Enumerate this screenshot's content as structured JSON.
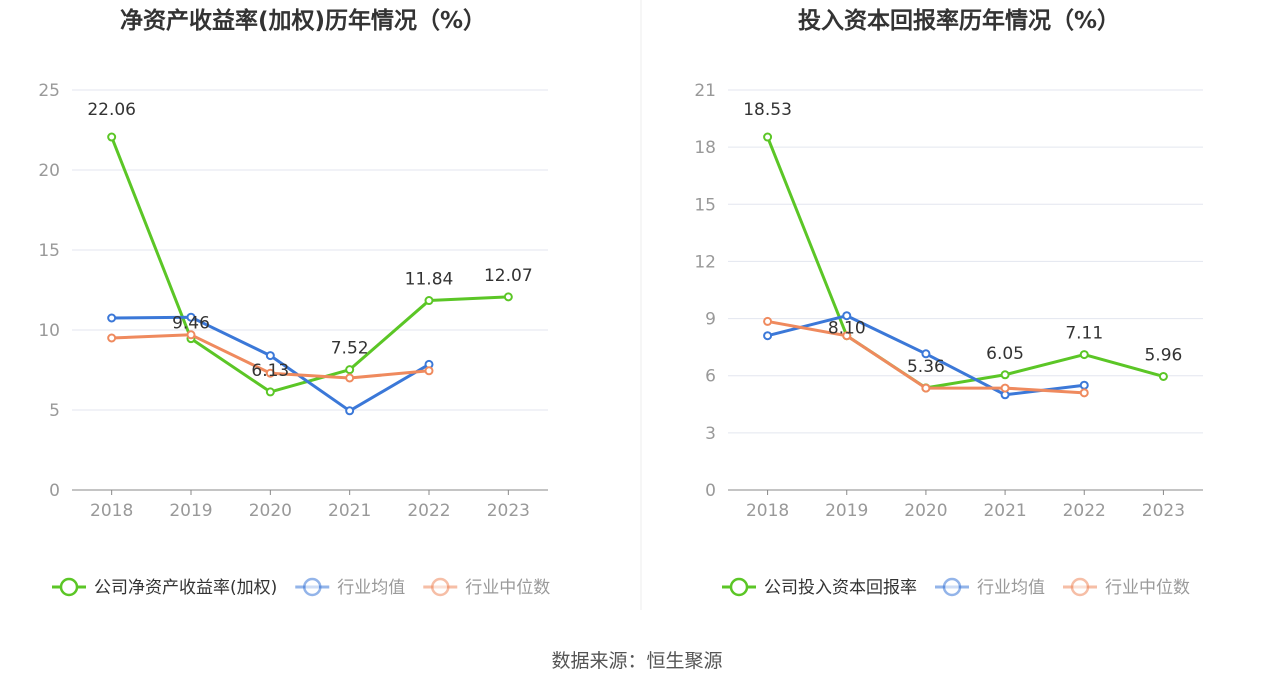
{
  "source_text": "数据来源：恒生聚源",
  "colors": {
    "company": "#5bc626",
    "industry_avg": "#3b78d8",
    "industry_median": "#ef8a5e",
    "grid": "#e3e6ef",
    "axis": "#888888"
  },
  "legend": {
    "industry_avg": "行业均值",
    "industry_median": "行业中位数"
  },
  "chart_data": [
    {
      "type": "line",
      "title": "净资产收益率(加权)历年情况（%）",
      "categories": [
        "2018",
        "2019",
        "2020",
        "2021",
        "2022",
        "2023"
      ],
      "ylim": [
        0,
        25
      ],
      "yticks": [
        0,
        5,
        10,
        15,
        20,
        25
      ],
      "grid": true,
      "legend_position": "bottom",
      "series": [
        {
          "name": "公司净资产收益率(加权)",
          "key": "company",
          "values": [
            22.06,
            9.46,
            6.13,
            7.52,
            11.84,
            12.07
          ],
          "labels": [
            "22.06",
            "9.46",
            "6.13",
            "7.52",
            "11.84",
            "12.07"
          ]
        },
        {
          "name": "行业均值",
          "key": "industry_avg",
          "values": [
            10.75,
            10.8,
            8.4,
            4.95,
            7.85,
            null
          ]
        },
        {
          "name": "行业中位数",
          "key": "industry_median",
          "values": [
            9.5,
            9.7,
            7.3,
            7.0,
            7.45,
            null
          ]
        }
      ]
    },
    {
      "type": "line",
      "title": "投入资本回报率历年情况（%）",
      "categories": [
        "2018",
        "2019",
        "2020",
        "2021",
        "2022",
        "2023"
      ],
      "ylim": [
        0,
        21
      ],
      "yticks": [
        0,
        3,
        6,
        9,
        12,
        15,
        18,
        21
      ],
      "grid": true,
      "legend_position": "bottom",
      "series": [
        {
          "name": "公司投入资本回报率",
          "key": "company",
          "values": [
            18.53,
            8.1,
            5.36,
            6.05,
            7.11,
            5.96
          ],
          "labels": [
            "18.53",
            "8.10",
            "5.36",
            "6.05",
            "7.11",
            "5.96"
          ]
        },
        {
          "name": "行业均值",
          "key": "industry_avg",
          "values": [
            8.1,
            9.15,
            7.15,
            5.0,
            5.5,
            null
          ]
        },
        {
          "name": "行业中位数",
          "key": "industry_median",
          "values": [
            8.85,
            8.1,
            5.35,
            5.35,
            5.1,
            null
          ]
        }
      ]
    }
  ]
}
